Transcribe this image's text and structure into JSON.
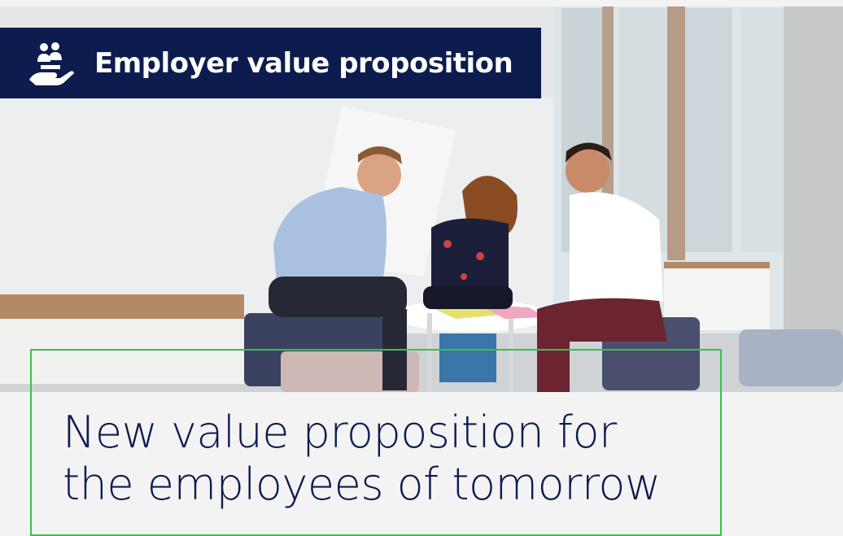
{
  "badge": {
    "title": "Employer value proposition",
    "icon": "hand-holding-people-icon"
  },
  "headline": {
    "line1": "New value proposition for",
    "line2": "the employees of tomorrow"
  },
  "image": {
    "subject": "three-colleagues-collaborating-photo"
  },
  "colors": {
    "navy": "#0c1c4e",
    "frame_green": "#35c24a",
    "background": "#f3f3f3"
  }
}
